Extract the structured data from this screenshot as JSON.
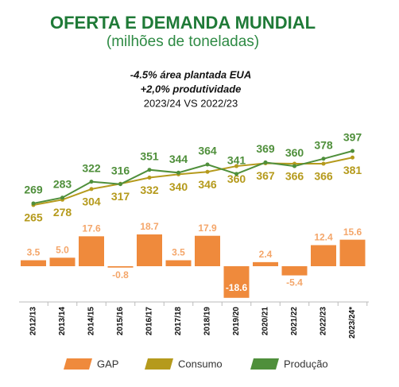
{
  "chart_data": {
    "type": "combo",
    "title": "OFERTA E DEMANDA MUNDIAL",
    "subtitle": "(milhões de toneladas)",
    "annotations": [
      "-4.5% área plantada EUA",
      "+2,0% produtividade",
      "2023/24 VS 2022/23"
    ],
    "categories": [
      "2012/13",
      "2013/14",
      "2014/15",
      "2015/16",
      "2016/17",
      "2017/18",
      "2018/19",
      "2019/20",
      "2020/21",
      "2021/22",
      "2022/23",
      "2023/24*"
    ],
    "series": [
      {
        "name": "GAP",
        "type": "bar",
        "color": "#ef8a3c",
        "values": [
          3.5,
          5.0,
          17.6,
          -0.8,
          18.7,
          3.5,
          17.9,
          -18.6,
          2.4,
          -5.4,
          12.4,
          15.6
        ],
        "value_labels": [
          "3.5",
          "5.0",
          "17.6",
          "-0.8",
          "18.7",
          "3.5",
          "17.9",
          "-18.6",
          "2.4",
          "-5.4",
          "12.4",
          "15.6"
        ]
      },
      {
        "name": "Consumo",
        "type": "line",
        "color": "#b59a1c",
        "values": [
          265,
          278,
          304,
          317,
          332,
          340,
          346,
          360,
          367,
          366,
          366,
          381
        ]
      },
      {
        "name": "Produção",
        "type": "line",
        "color": "#4f8f3b",
        "values": [
          269,
          283,
          322,
          316,
          351,
          344,
          364,
          341,
          369,
          360,
          378,
          397
        ]
      }
    ]
  }
}
